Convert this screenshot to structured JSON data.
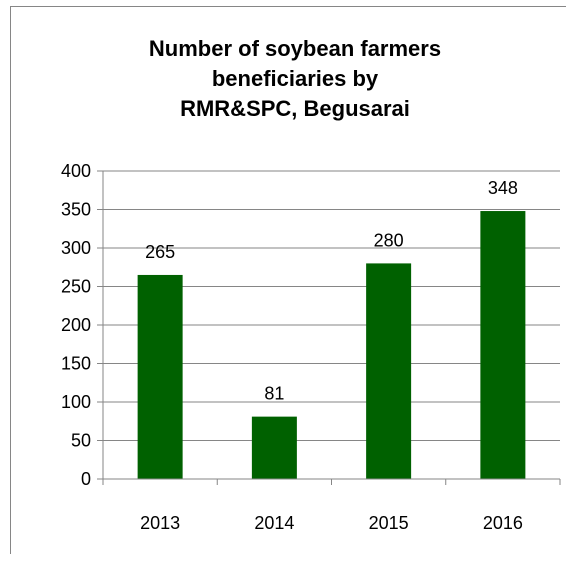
{
  "chart_data": {
    "type": "bar",
    "title_lines": [
      "Number of soybean farmers",
      "beneficiaries by",
      "RMR&SPC, Begusarai"
    ],
    "categories": [
      "2013",
      "2014",
      "2015",
      "2016"
    ],
    "values": [
      265,
      81,
      280,
      348
    ],
    "data_labels": [
      "265",
      "81",
      "280",
      "348"
    ],
    "y_ticks": [
      "0",
      "50",
      "100",
      "150",
      "200",
      "250",
      "300",
      "350",
      "400"
    ],
    "ylim": [
      0,
      400
    ],
    "bar_color": "#006100",
    "grid": true,
    "legend": "none"
  }
}
